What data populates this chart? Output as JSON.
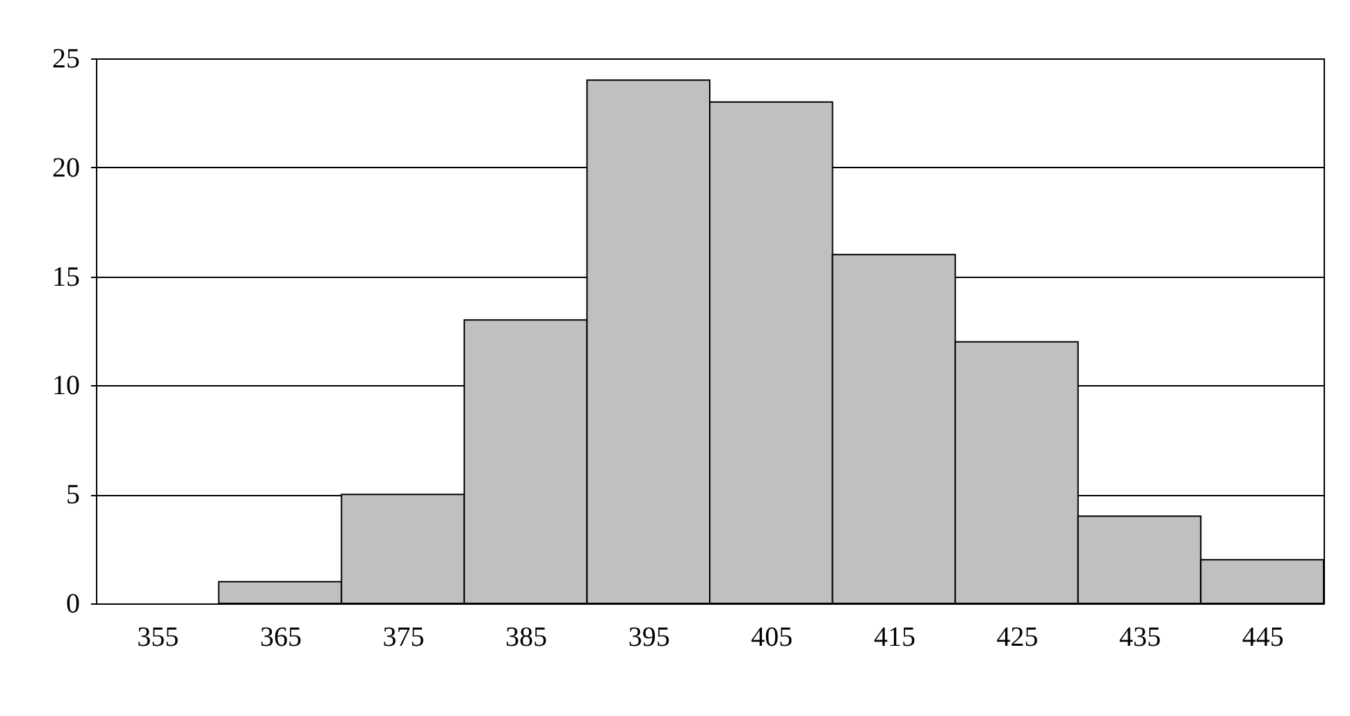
{
  "chart_data": {
    "type": "histogram",
    "bins": [
      350,
      360,
      370,
      380,
      390,
      400,
      410,
      420,
      430,
      440,
      450
    ],
    "values": [
      0,
      1,
      5,
      13,
      24,
      23,
      16,
      12,
      4,
      2
    ],
    "color": "#c0c0c0",
    "xlim": [
      350,
      450
    ],
    "xticks": [
      355,
      365,
      375,
      385,
      395,
      405,
      415,
      425,
      435,
      445
    ],
    "ylim": [
      0,
      25
    ],
    "yticks": [
      0,
      5,
      10,
      15,
      20,
      25
    ],
    "grid": "y"
  }
}
